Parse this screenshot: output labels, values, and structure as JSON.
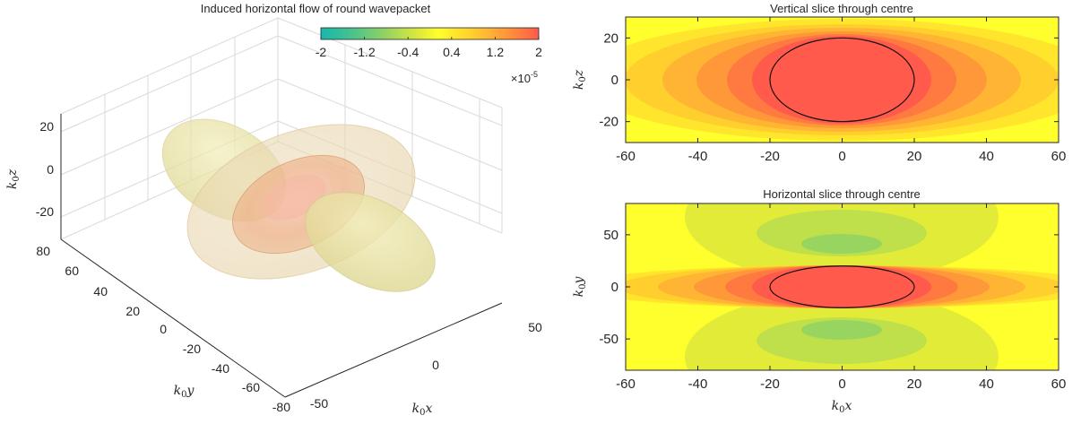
{
  "chart_data": [
    {
      "type": "isosurface-3d",
      "title": "Induced horizontal flow of round wavepacket",
      "xlabel": "k_0x",
      "ylabel": "k_0y",
      "zlabel": "k_0z",
      "xlabel_main": "k",
      "xlabel_sub": "0",
      "xlabel_var": "x",
      "ylabel_main": "k",
      "ylabel_sub": "0",
      "ylabel_var": "y",
      "zlabel_main": "k",
      "zlabel_sub": "0",
      "zlabel_var": "z",
      "x_ticks": [
        "-50",
        "0",
        "50"
      ],
      "y_ticks": [
        "-80",
        "-60",
        "-40",
        "-20",
        "0",
        "20",
        "40",
        "60",
        "80"
      ],
      "z_ticks": [
        "-20",
        "0",
        "20"
      ],
      "grid": true,
      "surfaces": [
        {
          "name": "positive isosurface",
          "color": "#F1A66F",
          "level": 2e-05
        },
        {
          "name": "negative isosurface lobes",
          "color": "#E0D980",
          "level": -2e-05
        }
      ],
      "colorbar": {
        "ticks": [
          "-2",
          "-1.2",
          "-0.4",
          "0.4",
          "1.2",
          "2"
        ],
        "range": [
          -2,
          2
        ],
        "exponent_base": "×10",
        "exponent": "-5",
        "placement": "top",
        "colors": [
          "#1BB6AC",
          "#2FBD9B",
          "#4EC38A",
          "#73CB76",
          "#98D460",
          "#BFE04B",
          "#E2EC38",
          "#FFFF2E",
          "#FFE52C",
          "#FFCF2E",
          "#FFB533",
          "#FF9839",
          "#FF7A41",
          "#FF5A4C"
        ]
      }
    },
    {
      "type": "contour",
      "title": "Vertical slice through centre",
      "xlabel": "k_0x",
      "ylabel": "k_0z",
      "ylabel_main": "k",
      "ylabel_sub": "0",
      "ylabel_var": "z",
      "xlim": [
        -60,
        60
      ],
      "ylim": [
        -30,
        30
      ],
      "x_ticks": [
        -60,
        -40,
        -20,
        0,
        20,
        40,
        60
      ],
      "y_ticks": [
        -20,
        0,
        20
      ],
      "packet_outline": {
        "cx": 0,
        "cy": 0,
        "rx": 20,
        "ry": 20
      }
    },
    {
      "type": "contour",
      "title": "Horizontal slice through centre",
      "xlabel": "k_0x",
      "ylabel": "k_0y",
      "xlabel_main": "k",
      "xlabel_sub": "0",
      "xlabel_var": "x",
      "ylabel_main": "k",
      "ylabel_sub": "0",
      "ylabel_var": "y",
      "xlim": [
        -60,
        60
      ],
      "ylim": [
        -80,
        80
      ],
      "x_ticks": [
        -60,
        -40,
        -20,
        0,
        20,
        40,
        60
      ],
      "y_ticks": [
        -50,
        0,
        50
      ],
      "packet_outline": {
        "cx": 0,
        "cy": 0,
        "rx": 20,
        "ry": 20
      }
    }
  ]
}
